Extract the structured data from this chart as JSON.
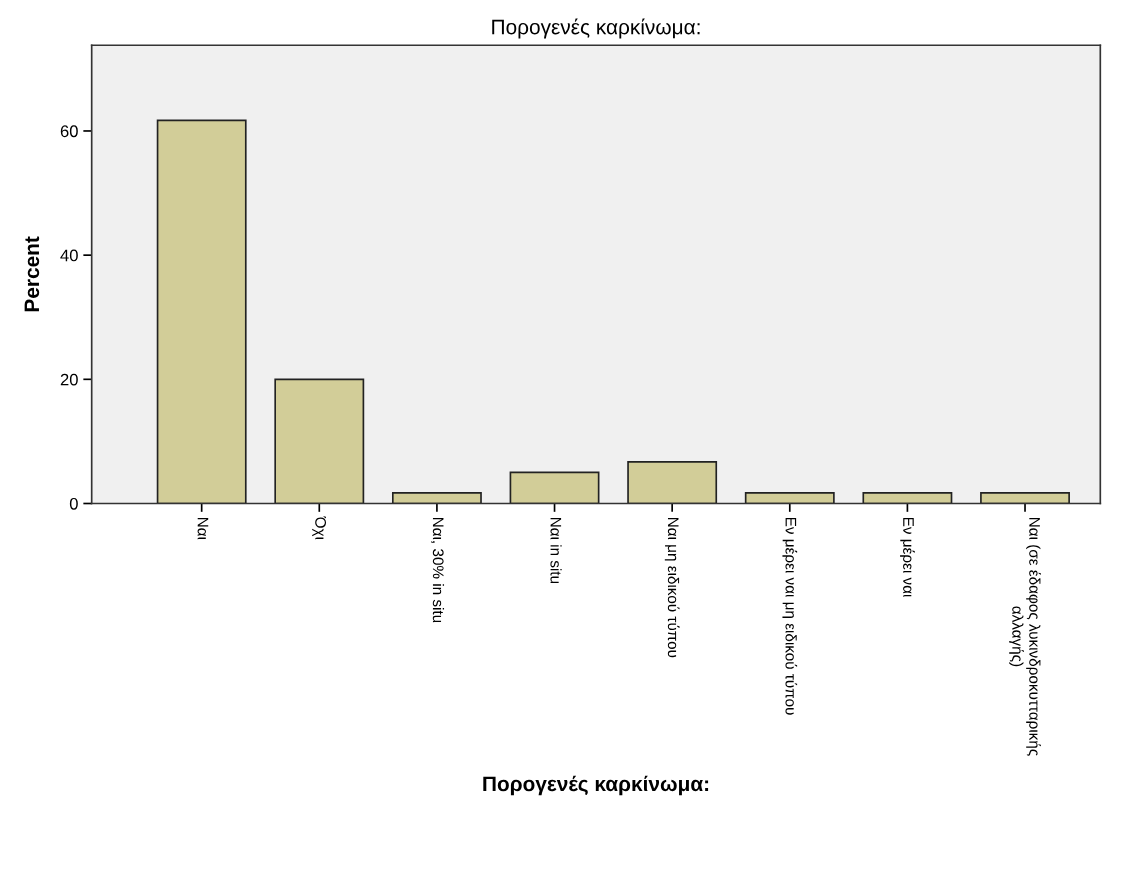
{
  "chart_data": {
    "type": "bar",
    "title": "Πορογενές καρκίνωμα:",
    "xlabel": "Πορογενές καρκίνωμα:",
    "ylabel": "Percent",
    "categories": [
      "Ναι",
      "Όχι",
      "Ναι, 30% in situ",
      "Ναι in situ",
      "Ναι μη ειδικού τύπου",
      "Εν μέρει ναι μη ειδικού τύπου",
      "Εν μέρει ναι",
      "Ναι (σε έδαφος λυκινδροκυτταρικής\nαλλαγής)"
    ],
    "values": [
      61.7,
      20,
      1.7,
      5,
      6.7,
      1.7,
      1.7,
      1.7
    ],
    "color": "#d2cd98",
    "ylim": [
      0,
      73.8
    ],
    "yticks": [
      0,
      20,
      40,
      60
    ],
    "grid": false,
    "legend": false
  }
}
